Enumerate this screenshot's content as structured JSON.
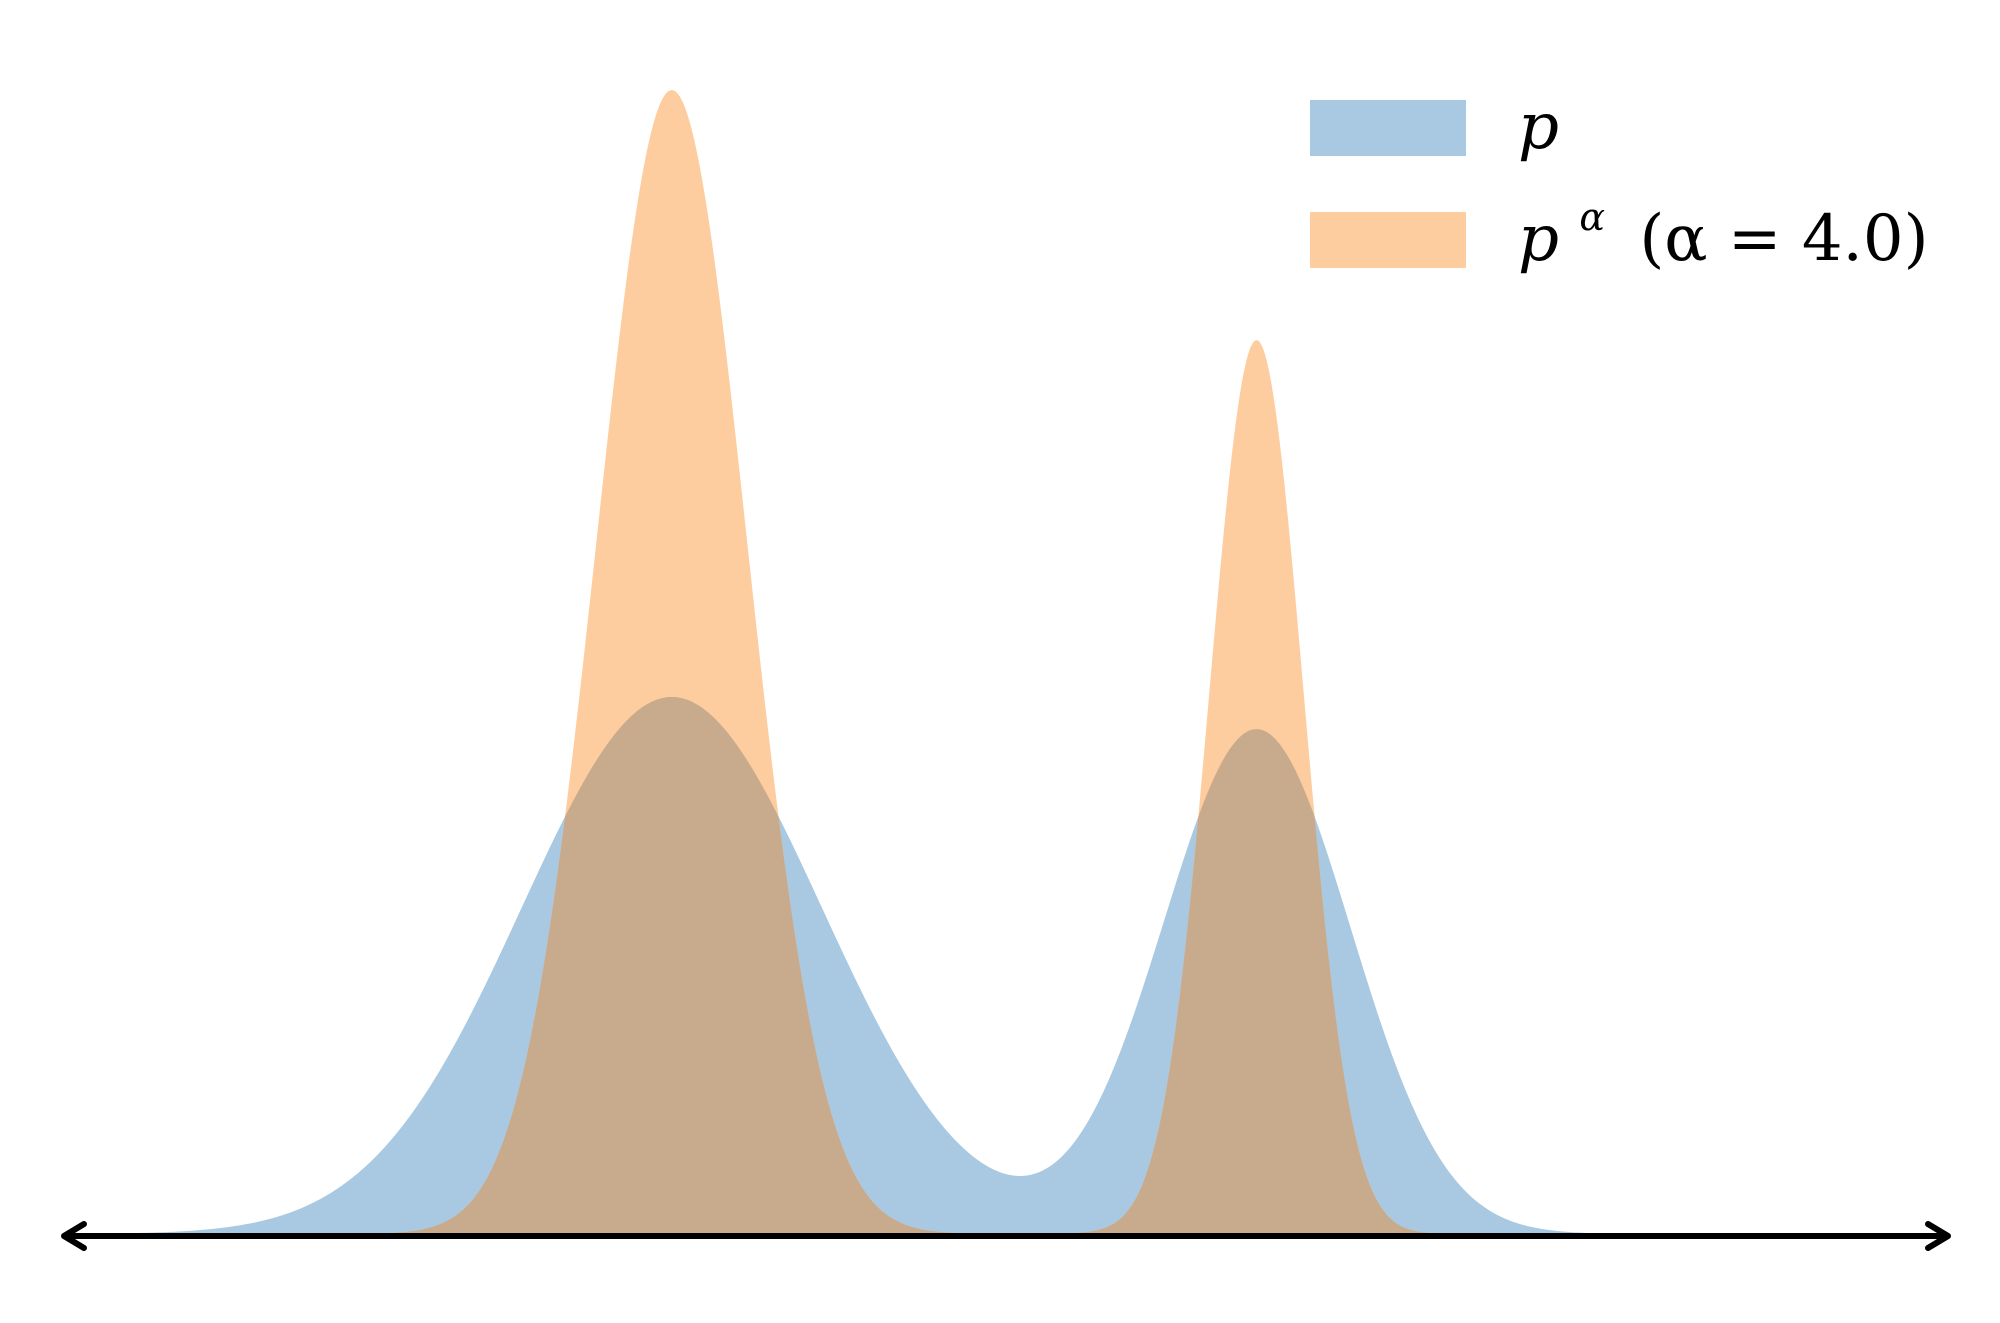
{
  "chart_data": {
    "type": "area",
    "title": "",
    "xlabel": "",
    "ylabel": "",
    "grid": false,
    "legend_position": "top-right",
    "xlim": [
      -4.5,
      4.5
    ],
    "ylim": [
      0,
      1
    ],
    "axis": {
      "x_arrows": "both",
      "y_axis_visible": false,
      "ticks_visible": false
    },
    "mixture": {
      "components": [
        {
          "weight": 0.63,
          "mean": -1.6,
          "std": 0.72
        },
        {
          "weight": 0.37,
          "mean": 1.2,
          "std": 0.45
        }
      ],
      "alpha": 4.0
    },
    "series": [
      {
        "key": "p",
        "legend_symbol": "p",
        "legend_text": "",
        "color": "#a8c9e1",
        "peak_values": [
          0.474,
          0.451
        ],
        "valley_value": 0.057
      },
      {
        "key": "p_alpha",
        "legend_symbol": "p",
        "legend_superscript": "α",
        "legend_text": "(α = 4.0)",
        "color": "#fdcd9f",
        "peak_values": [
          1.0,
          0.824
        ],
        "valley_value": 0.0
      }
    ],
    "overlap_color": "#c8aa8c"
  }
}
